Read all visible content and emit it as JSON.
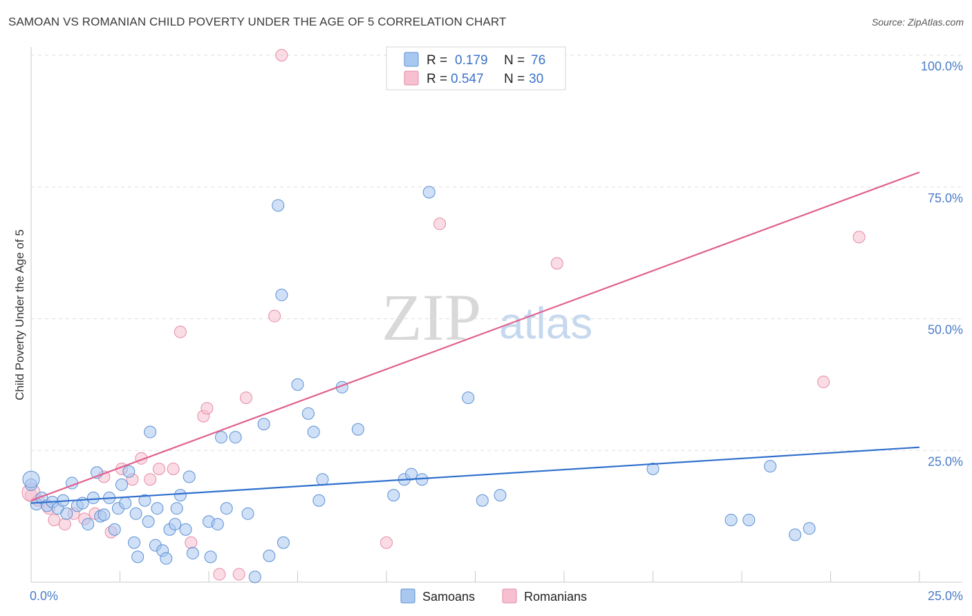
{
  "header": {
    "title": "SAMOAN VS ROMANIAN CHILD POVERTY UNDER THE AGE OF 5 CORRELATION CHART",
    "source": "Source: ZipAtlas.com"
  },
  "watermark": {
    "zip": "ZIP",
    "atlas": "atlas"
  },
  "colors": {
    "samoans_fill": "#a9c8f0",
    "samoans_stroke": "#5b8fd4",
    "samoans_line": "#2f6fcc",
    "romanians_fill": "#f6c0d0",
    "romanians_stroke": "#e68aa6",
    "romanians_line": "#e0608e",
    "tick_text": "#4a7cc7",
    "grid": "#dddddd"
  },
  "legend": {
    "rows": [
      {
        "r_label": "R =",
        "r_value": "0.179",
        "n_label": "N =",
        "n_value": "76"
      },
      {
        "r_label": "R =",
        "r_value": "0.547",
        "n_label": "N =",
        "n_value": "30"
      }
    ]
  },
  "bottom_legend": {
    "items": [
      "Samoans",
      "Romanians"
    ]
  },
  "chart_data": {
    "type": "scatter",
    "title": "SAMOAN VS ROMANIAN CHILD POVERTY UNDER THE AGE OF 5 CORRELATION CHART",
    "xlabel": "",
    "ylabel": "Child Poverty Under the Age of 5",
    "xlim": [
      0,
      25
    ],
    "ylim": [
      0,
      100
    ],
    "x_tick_labels": [
      "0.0%",
      "25.0%"
    ],
    "y_ticks": [
      25,
      50,
      75,
      100
    ],
    "y_tick_labels": [
      "25.0%",
      "50.0%",
      "75.0%",
      "100.0%"
    ],
    "series": [
      {
        "name": "Samoans",
        "R": 0.179,
        "N": 76,
        "trend": {
          "x": [
            0,
            25
          ],
          "y": [
            15.0,
            25.6
          ]
        },
        "points": [
          [
            0.0,
            18.5
          ],
          [
            0.15,
            14.8
          ],
          [
            0.3,
            16.0
          ],
          [
            0.45,
            14.5
          ],
          [
            0.6,
            15.2
          ],
          [
            0.75,
            14.0
          ],
          [
            0.9,
            15.5
          ],
          [
            1.0,
            13.0
          ],
          [
            1.15,
            18.8
          ],
          [
            1.3,
            14.5
          ],
          [
            1.45,
            15.0
          ],
          [
            1.6,
            11.0
          ],
          [
            1.75,
            16.0
          ],
          [
            1.85,
            20.8
          ],
          [
            1.95,
            12.5
          ],
          [
            2.05,
            12.8
          ],
          [
            2.2,
            16.0
          ],
          [
            2.35,
            10.0
          ],
          [
            2.45,
            14.0
          ],
          [
            2.55,
            18.5
          ],
          [
            2.65,
            15.0
          ],
          [
            2.75,
            21.0
          ],
          [
            2.9,
            7.5
          ],
          [
            2.95,
            13.0
          ],
          [
            3.0,
            4.8
          ],
          [
            3.2,
            15.5
          ],
          [
            3.3,
            11.5
          ],
          [
            3.35,
            28.5
          ],
          [
            3.5,
            7.0
          ],
          [
            3.55,
            14.0
          ],
          [
            3.7,
            6.0
          ],
          [
            3.8,
            4.5
          ],
          [
            3.9,
            10.0
          ],
          [
            4.05,
            11.0
          ],
          [
            4.1,
            14.0
          ],
          [
            4.2,
            16.5
          ],
          [
            4.35,
            10.0
          ],
          [
            4.45,
            20.0
          ],
          [
            4.55,
            5.5
          ],
          [
            5.0,
            11.5
          ],
          [
            5.05,
            4.8
          ],
          [
            5.25,
            11.0
          ],
          [
            5.35,
            27.5
          ],
          [
            5.5,
            14.0
          ],
          [
            5.75,
            27.5
          ],
          [
            6.1,
            13.0
          ],
          [
            6.3,
            1.0
          ],
          [
            6.55,
            30.0
          ],
          [
            6.7,
            5.0
          ],
          [
            6.95,
            71.5
          ],
          [
            7.05,
            54.5
          ],
          [
            7.1,
            7.5
          ],
          [
            7.5,
            37.5
          ],
          [
            7.8,
            32.0
          ],
          [
            7.95,
            28.5
          ],
          [
            8.1,
            15.5
          ],
          [
            8.2,
            19.5
          ],
          [
            8.75,
            37.0
          ],
          [
            9.2,
            29.0
          ],
          [
            10.2,
            16.5
          ],
          [
            10.5,
            19.5
          ],
          [
            10.7,
            20.5
          ],
          [
            11.0,
            19.5
          ],
          [
            11.2,
            74.0
          ],
          [
            12.3,
            35.0
          ],
          [
            12.7,
            15.5
          ],
          [
            13.2,
            16.5
          ],
          [
            17.5,
            21.5
          ],
          [
            19.7,
            11.8
          ],
          [
            20.2,
            11.8
          ],
          [
            20.8,
            22.0
          ],
          [
            21.5,
            9.0
          ],
          [
            21.9,
            10.2
          ]
        ]
      },
      {
        "name": "Romanians",
        "R": 0.547,
        "N": 30,
        "trend": {
          "x": [
            0,
            25
          ],
          "y": [
            15.5,
            77.8
          ]
        },
        "points": [
          [
            0.0,
            16.5
          ],
          [
            0.2,
            15.5
          ],
          [
            0.5,
            14.0
          ],
          [
            0.65,
            11.8
          ],
          [
            0.95,
            11.0
          ],
          [
            1.2,
            13.0
          ],
          [
            1.5,
            12.0
          ],
          [
            1.8,
            13.0
          ],
          [
            2.05,
            20.0
          ],
          [
            2.25,
            9.5
          ],
          [
            2.55,
            21.5
          ],
          [
            2.85,
            19.5
          ],
          [
            3.1,
            23.5
          ],
          [
            3.35,
            19.5
          ],
          [
            3.6,
            21.5
          ],
          [
            4.0,
            21.5
          ],
          [
            4.2,
            47.5
          ],
          [
            4.5,
            7.5
          ],
          [
            4.85,
            31.5
          ],
          [
            4.95,
            33.0
          ],
          [
            5.3,
            1.5
          ],
          [
            5.85,
            1.5
          ],
          [
            6.05,
            35.0
          ],
          [
            6.85,
            50.5
          ],
          [
            7.05,
            100.0
          ],
          [
            10.0,
            7.5
          ],
          [
            11.5,
            68.0
          ],
          [
            14.8,
            60.5
          ],
          [
            22.3,
            38.0
          ],
          [
            23.3,
            65.5
          ]
        ]
      }
    ]
  }
}
